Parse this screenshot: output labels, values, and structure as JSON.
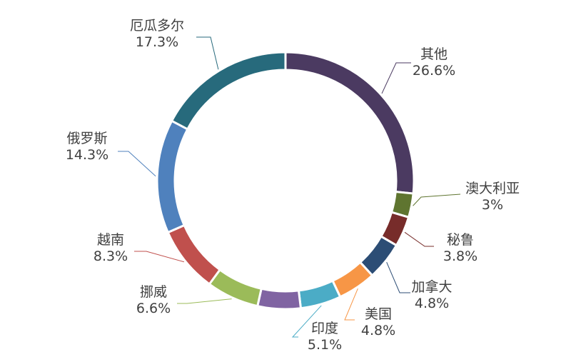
{
  "chart_data": {
    "type": "pie",
    "variant": "donut",
    "title": "",
    "labels_outside": true,
    "slices": [
      {
        "label": "其他",
        "value": 26.6,
        "display": "26.6%",
        "color": "#4b3a61"
      },
      {
        "label": "澳大利亚",
        "value": 3.0,
        "display": "3%",
        "color": "#5f7530"
      },
      {
        "label": "秘鲁",
        "value": 3.8,
        "display": "3.8%",
        "color": "#772c2a"
      },
      {
        "label": "加拿大",
        "value": 4.8,
        "display": "4.8%",
        "color": "#2c4d75"
      },
      {
        "label": "美国",
        "value": 4.8,
        "display": "4.8%",
        "color": "#f79646"
      },
      {
        "label": "印度",
        "value": 5.1,
        "display": "5.1%",
        "color": "#4bacc6"
      },
      {
        "label": "",
        "value": 5.4,
        "display": "",
        "color": "#8064a2"
      },
      {
        "label": "挪威",
        "value": 6.6,
        "display": "6.6%",
        "color": "#9bbb59"
      },
      {
        "label": "越南",
        "value": 8.3,
        "display": "8.3%",
        "color": "#c0504d"
      },
      {
        "label": "俄罗斯",
        "value": 14.3,
        "display": "14.3%",
        "color": "#4f81bd"
      },
      {
        "label": "厄瓜多尔",
        "value": 17.3,
        "display": "17.3%",
        "color": "#276a7c"
      }
    ]
  }
}
